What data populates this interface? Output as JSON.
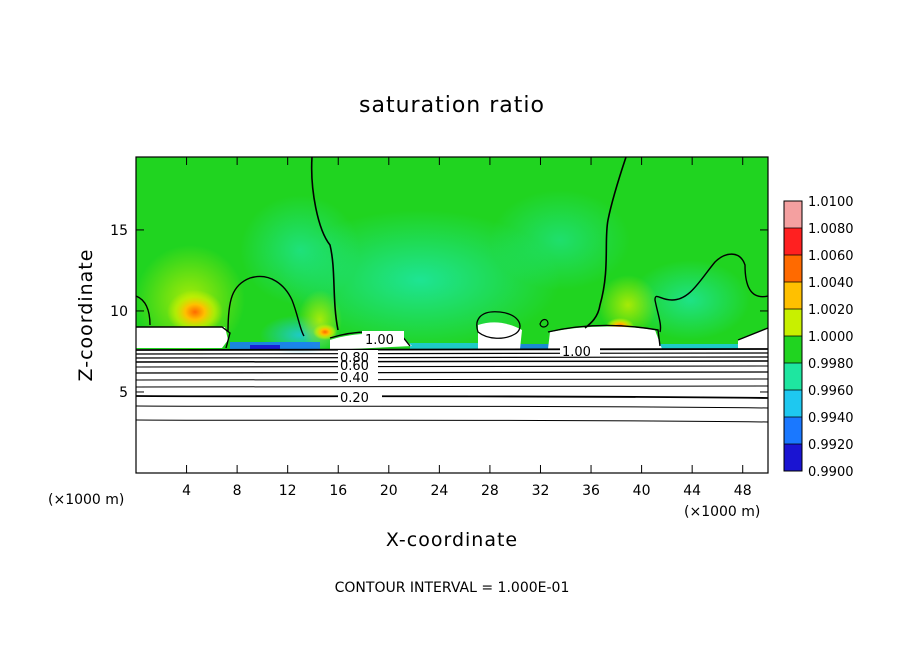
{
  "chart_data": {
    "type": "heatmap",
    "title": "saturation ratio",
    "xlabel": "X-coordinate",
    "ylabel": "Z-coordinate",
    "x_unit": "(×1000 m)",
    "z_unit": "(×1000 m)",
    "xlim": [
      0,
      50
    ],
    "ylim": [
      0,
      19.5
    ],
    "x_ticks": [
      4,
      8,
      12,
      16,
      20,
      24,
      28,
      32,
      36,
      40,
      44,
      48
    ],
    "y_ticks": [
      5,
      10,
      15
    ],
    "colorbar": {
      "levels": [
        "1.0100",
        "1.0080",
        "1.0060",
        "1.0040",
        "1.0020",
        "1.0000",
        "0.9980",
        "0.9960",
        "0.9940",
        "0.9920",
        "0.9900"
      ],
      "colors": [
        "#f4a0a0",
        "#ff2020",
        "#ff6a00",
        "#ffc000",
        "#c8f000",
        "#20d420",
        "#1ee6a0",
        "#1ec8f0",
        "#1a78ff",
        "#1a14d2",
        "#6a0aa0"
      ]
    },
    "contour_labels": [
      "1.00",
      "1.00",
      "0.80",
      "0.60",
      "0.40",
      "0.20"
    ],
    "footer": "CONTOUR INTERVAL = 1.000E-01",
    "grid": false
  }
}
